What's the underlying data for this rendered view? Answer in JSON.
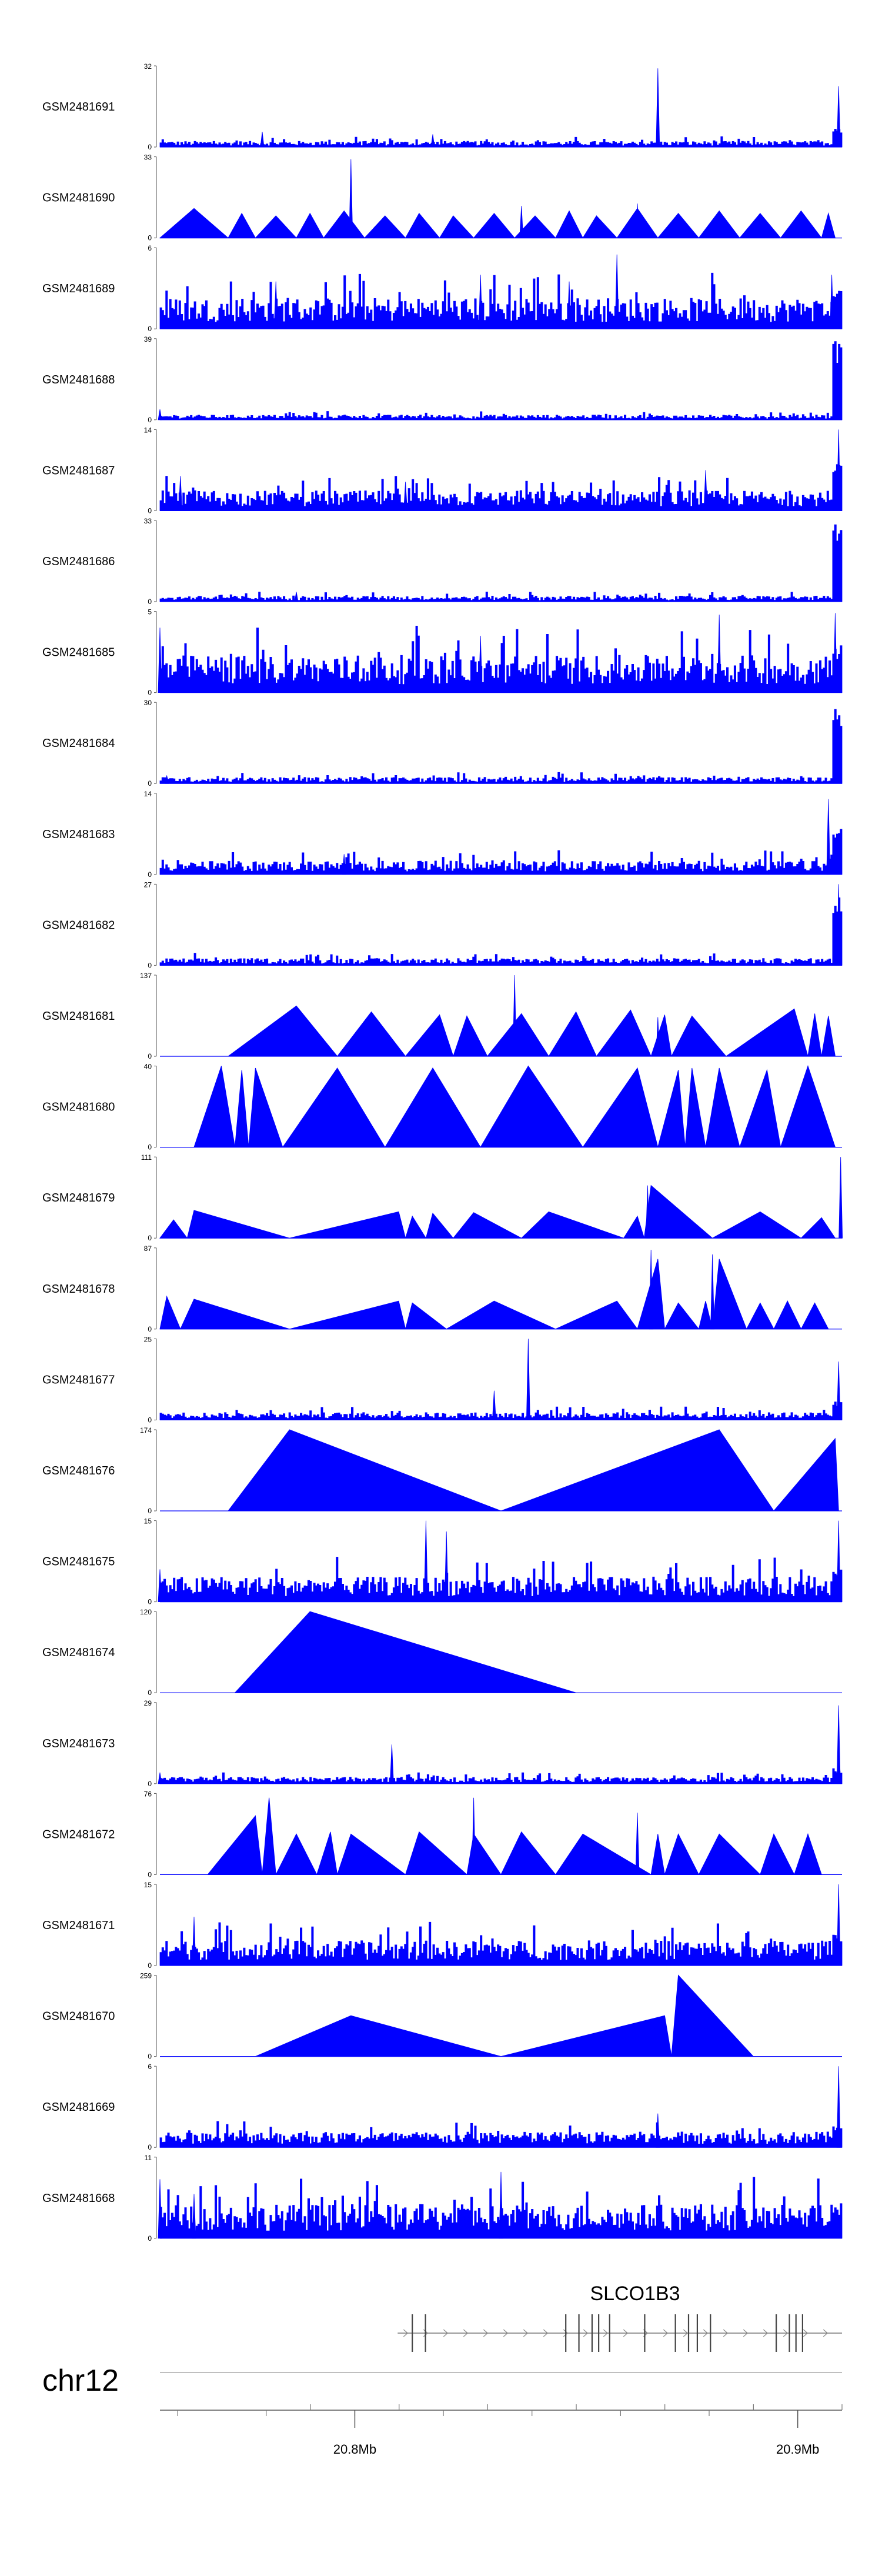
{
  "chart_data": {
    "type": "area",
    "fill_color": "#0000ff",
    "chromosome": "chr12",
    "gene": {
      "name": "SLCO1B3",
      "start_mb": 20.811,
      "end_mb": 20.91,
      "strand": "+",
      "exon_count": 16
    },
    "x_axis": {
      "xlim_mb": [
        20.756,
        20.91
      ],
      "ticks": [
        {
          "mb": 20.8,
          "label": "20.8Mb"
        },
        {
          "mb": 20.9,
          "label": "20.9Mb"
        }
      ]
    },
    "tracks": [
      {
        "name": "GSM2481691",
        "ymax": 32,
        "style": "spiky",
        "baseline": 2,
        "spikes": [
          [
            0.73,
            31
          ],
          [
            0.995,
            24
          ],
          [
            0.15,
            6
          ],
          [
            0.4,
            5
          ]
        ],
        "endpeak": 8
      },
      {
        "name": "GSM2481690",
        "ymax": 33,
        "style": "triangles",
        "triangles": [
          [
            0.0,
            0.05,
            0.1,
            12
          ],
          [
            0.1,
            0.12,
            0.14,
            10
          ],
          [
            0.14,
            0.17,
            0.2,
            9
          ],
          [
            0.2,
            0.22,
            0.24,
            10
          ],
          [
            0.24,
            0.27,
            0.3,
            11
          ],
          [
            0.3,
            0.33,
            0.36,
            9
          ],
          [
            0.36,
            0.38,
            0.41,
            10
          ],
          [
            0.41,
            0.43,
            0.46,
            9
          ],
          [
            0.46,
            0.49,
            0.52,
            10
          ],
          [
            0.52,
            0.55,
            0.58,
            9
          ],
          [
            0.58,
            0.6,
            0.62,
            11
          ],
          [
            0.62,
            0.64,
            0.67,
            9
          ],
          [
            0.67,
            0.7,
            0.73,
            12
          ],
          [
            0.73,
            0.76,
            0.79,
            10
          ],
          [
            0.79,
            0.82,
            0.85,
            11
          ],
          [
            0.85,
            0.88,
            0.91,
            10
          ],
          [
            0.91,
            0.94,
            0.97,
            11
          ],
          [
            0.97,
            0.98,
            0.99,
            10
          ]
        ],
        "spikes": [
          [
            0.28,
            32
          ],
          [
            0.7,
            14
          ],
          [
            0.53,
            13
          ]
        ]
      },
      {
        "name": "GSM2481689",
        "ymax": 6,
        "style": "spiky",
        "baseline": 2,
        "spikes": [
          [
            0.17,
            3.5
          ],
          [
            0.47,
            4
          ],
          [
            0.67,
            5.5
          ],
          [
            0.985,
            4
          ],
          [
            0.6,
            3.5
          ]
        ],
        "endpeak": 3
      },
      {
        "name": "GSM2481688",
        "ymax": 39,
        "style": "spiky",
        "baseline": 2,
        "spikes": [
          [
            0.0,
            5
          ]
        ],
        "endpeak": 39
      },
      {
        "name": "GSM2481687",
        "ymax": 14,
        "style": "spiky",
        "baseline": 3,
        "spikes": [
          [
            0.03,
            6
          ],
          [
            0.36,
            5
          ],
          [
            0.8,
            7
          ],
          [
            0.995,
            14
          ]
        ],
        "endpeak": 8
      },
      {
        "name": "GSM2481686",
        "ymax": 33,
        "style": "spiky",
        "baseline": 2,
        "spikes": [
          [
            0.2,
            4
          ]
        ],
        "endpeak": 33
      },
      {
        "name": "GSM2481685",
        "ymax": 5,
        "style": "spiky",
        "baseline": 2,
        "spikes": [
          [
            0.82,
            4.8
          ],
          [
            0.0,
            4
          ],
          [
            0.47,
            3.5
          ],
          [
            0.99,
            4.9
          ]
        ],
        "endpeak": 3
      },
      {
        "name": "GSM2481684",
        "ymax": 30,
        "style": "spiky",
        "baseline": 2,
        "spikes": [
          [
            0.01,
            3
          ]
        ],
        "endpeak": 30
      },
      {
        "name": "GSM2481683",
        "ymax": 14,
        "style": "spiky",
        "baseline": 2,
        "spikes": [
          [
            0.98,
            13
          ],
          [
            0.27,
            3.5
          ]
        ],
        "endpeak": 9
      },
      {
        "name": "GSM2481682",
        "ymax": 27,
        "style": "spiky",
        "baseline": 2,
        "spikes": [
          [
            0.995,
            27
          ]
        ],
        "endpeak": 24
      },
      {
        "name": "GSM2481681",
        "ymax": 137,
        "style": "triangles",
        "triangles": [
          [
            0.1,
            0.2,
            0.26,
            85
          ],
          [
            0.26,
            0.31,
            0.36,
            75
          ],
          [
            0.36,
            0.41,
            0.43,
            70
          ],
          [
            0.43,
            0.45,
            0.48,
            68
          ],
          [
            0.48,
            0.53,
            0.57,
            72
          ],
          [
            0.57,
            0.61,
            0.64,
            75
          ],
          [
            0.64,
            0.69,
            0.72,
            78
          ],
          [
            0.72,
            0.74,
            0.75,
            70
          ],
          [
            0.75,
            0.78,
            0.83,
            68
          ],
          [
            0.83,
            0.93,
            0.95,
            80
          ],
          [
            0.95,
            0.96,
            0.97,
            72
          ],
          [
            0.97,
            0.98,
            0.99,
            68
          ]
        ],
        "spikes": [
          [
            0.52,
            137
          ],
          [
            0.73,
            66
          ]
        ]
      },
      {
        "name": "GSM2481680",
        "ymax": 40,
        "style": "triangles",
        "triangles": [
          [
            0.05,
            0.09,
            0.11,
            40
          ],
          [
            0.11,
            0.12,
            0.13,
            38
          ],
          [
            0.13,
            0.14,
            0.18,
            39
          ],
          [
            0.18,
            0.26,
            0.33,
            39
          ],
          [
            0.33,
            0.4,
            0.47,
            39
          ],
          [
            0.47,
            0.54,
            0.62,
            40
          ],
          [
            0.62,
            0.7,
            0.73,
            39
          ],
          [
            0.73,
            0.76,
            0.77,
            38
          ],
          [
            0.77,
            0.78,
            0.8,
            39
          ],
          [
            0.8,
            0.82,
            0.85,
            39
          ],
          [
            0.85,
            0.89,
            0.91,
            38
          ],
          [
            0.91,
            0.95,
            0.99,
            40
          ]
        ],
        "spikes": [
          [
            0.7,
            39
          ]
        ]
      },
      {
        "name": "GSM2481679",
        "ymax": 111,
        "style": "triangles",
        "triangles": [
          [
            0.0,
            0.02,
            0.04,
            25
          ],
          [
            0.04,
            0.05,
            0.19,
            38
          ],
          [
            0.19,
            0.35,
            0.36,
            36
          ],
          [
            0.36,
            0.37,
            0.39,
            30
          ],
          [
            0.39,
            0.4,
            0.43,
            34
          ],
          [
            0.43,
            0.46,
            0.53,
            35
          ],
          [
            0.53,
            0.57,
            0.68,
            36
          ],
          [
            0.68,
            0.7,
            0.71,
            30
          ],
          [
            0.71,
            0.72,
            0.81,
            72
          ],
          [
            0.81,
            0.88,
            0.94,
            36
          ],
          [
            0.94,
            0.97,
            0.99,
            28
          ]
        ],
        "spikes": [
          [
            0.998,
            111
          ],
          [
            0.715,
            72
          ]
        ]
      },
      {
        "name": "GSM2481678",
        "ymax": 87,
        "style": "triangles",
        "triangles": [
          [
            0.0,
            0.01,
            0.03,
            35
          ],
          [
            0.03,
            0.05,
            0.19,
            32
          ],
          [
            0.19,
            0.35,
            0.36,
            30
          ],
          [
            0.36,
            0.37,
            0.42,
            28
          ],
          [
            0.42,
            0.49,
            0.58,
            30
          ],
          [
            0.58,
            0.67,
            0.7,
            30
          ],
          [
            0.7,
            0.73,
            0.74,
            75
          ],
          [
            0.74,
            0.76,
            0.79,
            28
          ],
          [
            0.79,
            0.8,
            0.81,
            30
          ],
          [
            0.81,
            0.82,
            0.86,
            75
          ],
          [
            0.86,
            0.88,
            0.9,
            28
          ],
          [
            0.9,
            0.92,
            0.94,
            30
          ],
          [
            0.94,
            0.96,
            0.98,
            28
          ]
        ],
        "spikes": [
          [
            0.72,
            85
          ],
          [
            0.81,
            80
          ]
        ]
      },
      {
        "name": "GSM2481677",
        "ymax": 25,
        "style": "spiky",
        "baseline": 2,
        "spikes": [
          [
            0.54,
            25
          ],
          [
            0.49,
            9
          ],
          [
            0.995,
            18
          ]
        ],
        "endpeak": 6
      },
      {
        "name": "GSM2481676",
        "ymax": 174,
        "style": "triangles",
        "triangles": [
          [
            0.1,
            0.19,
            0.5,
            174
          ],
          [
            0.5,
            0.82,
            0.9,
            174
          ],
          [
            0.9,
            0.99,
            0.995,
            155
          ]
        ],
        "spikes": []
      },
      {
        "name": "GSM2481675",
        "ymax": 15,
        "style": "spiky",
        "baseline": 4,
        "spikes": [
          [
            0.39,
            15
          ],
          [
            0.42,
            13
          ],
          [
            0.995,
            15
          ],
          [
            0.0,
            6
          ]
        ],
        "endpeak": 7
      },
      {
        "name": "GSM2481674",
        "ymax": 120,
        "style": "triangles",
        "triangles": [
          [
            0.11,
            0.22,
            0.61,
            120
          ]
        ],
        "spikes": []
      },
      {
        "name": "GSM2481673",
        "ymax": 29,
        "style": "spiky",
        "baseline": 2,
        "spikes": [
          [
            0.34,
            14
          ],
          [
            0.995,
            28
          ],
          [
            0.0,
            4
          ]
        ],
        "endpeak": 6
      },
      {
        "name": "GSM2481672",
        "ymax": 76,
        "style": "triangles",
        "triangles": [
          [
            0.07,
            0.14,
            0.15,
            55
          ],
          [
            0.15,
            0.16,
            0.17,
            72
          ],
          [
            0.17,
            0.2,
            0.23,
            38
          ],
          [
            0.23,
            0.25,
            0.26,
            40
          ],
          [
            0.26,
            0.28,
            0.36,
            38
          ],
          [
            0.36,
            0.38,
            0.45,
            40
          ],
          [
            0.45,
            0.46,
            0.5,
            38
          ],
          [
            0.5,
            0.53,
            0.58,
            40
          ],
          [
            0.58,
            0.62,
            0.72,
            38
          ],
          [
            0.72,
            0.73,
            0.74,
            38
          ],
          [
            0.74,
            0.76,
            0.79,
            38
          ],
          [
            0.79,
            0.82,
            0.88,
            38
          ],
          [
            0.88,
            0.9,
            0.93,
            38
          ],
          [
            0.93,
            0.95,
            0.97,
            38
          ]
        ],
        "spikes": [
          [
            0.46,
            72
          ],
          [
            0.7,
            58
          ]
        ]
      },
      {
        "name": "GSM2481671",
        "ymax": 15,
        "style": "spiky",
        "baseline": 4,
        "spikes": [
          [
            0.995,
            15
          ],
          [
            0.05,
            9
          ]
        ],
        "endpeak": 6
      },
      {
        "name": "GSM2481670",
        "ymax": 259,
        "style": "triangles",
        "triangles": [
          [
            0.14,
            0.28,
            0.5,
            130
          ],
          [
            0.5,
            0.74,
            0.75,
            130
          ],
          [
            0.75,
            0.76,
            0.87,
            259
          ]
        ],
        "spikes": []
      },
      {
        "name": "GSM2481669",
        "ymax": 6,
        "style": "spiky",
        "baseline": 1,
        "spikes": [
          [
            0.995,
            6
          ],
          [
            0.73,
            2.5
          ]
        ],
        "endpeak": 2
      },
      {
        "name": "GSM2481668",
        "ymax": 11,
        "style": "spiky",
        "baseline": 4,
        "spikes": [
          [
            0.0,
            8
          ],
          [
            0.05,
            6
          ],
          [
            0.5,
            9
          ]
        ],
        "endpeak": 5
      }
    ]
  }
}
